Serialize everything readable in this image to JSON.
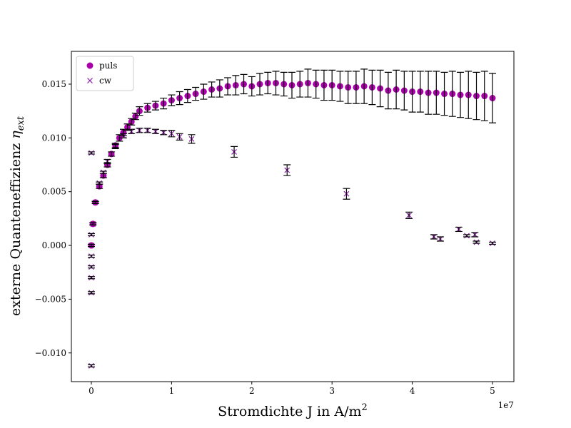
{
  "chart_data": {
    "type": "scatter",
    "xlabel": "Stromdichte J in A/m",
    "xlabel_sup": "2",
    "ylabel": "externe Quanteneffizienz ",
    "ylabel_symbol": "η",
    "ylabel_sub": "ext",
    "x_offset_label": "1e7",
    "xlim": [
      -0.249,
      5.267
    ],
    "ylim": [
      -0.01267,
      0.01805
    ],
    "xticks": [
      0,
      1,
      2,
      3,
      4,
      5
    ],
    "yticks": [
      {
        "value": -0.01,
        "label": "−0.010"
      },
      {
        "value": -0.005,
        "label": "−0.005"
      },
      {
        "value": 0.0,
        "label": "0.000"
      },
      {
        "value": 0.005,
        "label": "0.005"
      },
      {
        "value": 0.01,
        "label": "0.010"
      },
      {
        "value": 0.015,
        "label": "0.015"
      }
    ],
    "legend": "upper left",
    "series": [
      {
        "name": "puls",
        "color": "#aa00aa",
        "marker": "o",
        "x": [
          0,
          0.02,
          0.05,
          0.1,
          0.15,
          0.2,
          0.25,
          0.3,
          0.35,
          0.4,
          0.45,
          0.5,
          0.55,
          0.6,
          0.7,
          0.8,
          0.9,
          1.0,
          1.1,
          1.2,
          1.3,
          1.4,
          1.5,
          1.6,
          1.7,
          1.8,
          1.9,
          2.0,
          2.1,
          2.2,
          2.3,
          2.4,
          2.5,
          2.6,
          2.7,
          2.8,
          2.9,
          3.0,
          3.1,
          3.2,
          3.3,
          3.4,
          3.5,
          3.6,
          3.7,
          3.8,
          3.9,
          4.0,
          4.1,
          4.2,
          4.3,
          4.4,
          4.5,
          4.6,
          4.7,
          4.8,
          4.9,
          5.0
        ],
        "values": [
          0.0,
          0.002,
          0.004,
          0.0055,
          0.0065,
          0.0075,
          0.0085,
          0.0093,
          0.01,
          0.0105,
          0.011,
          0.0115,
          0.012,
          0.0125,
          0.0128,
          0.013,
          0.0132,
          0.0135,
          0.0137,
          0.0139,
          0.0141,
          0.0143,
          0.0145,
          0.0146,
          0.0148,
          0.0149,
          0.015,
          0.0148,
          0.015,
          0.0151,
          0.0151,
          0.015,
          0.0149,
          0.015,
          0.0151,
          0.015,
          0.0149,
          0.0149,
          0.0148,
          0.0147,
          0.0147,
          0.0148,
          0.0147,
          0.0146,
          0.0144,
          0.0145,
          0.0144,
          0.0143,
          0.0143,
          0.0142,
          0.0142,
          0.0141,
          0.0141,
          0.014,
          0.014,
          0.0139,
          0.0139,
          0.0137
        ],
        "errors": [
          0.0001,
          0.0001,
          0.0001,
          0.0002,
          0.0002,
          0.0002,
          0.0002,
          0.0002,
          0.0003,
          0.0003,
          0.0003,
          0.0003,
          0.0003,
          0.0004,
          0.0004,
          0.0004,
          0.0005,
          0.0005,
          0.0006,
          0.0006,
          0.0006,
          0.0007,
          0.0007,
          0.0008,
          0.0008,
          0.0009,
          0.0009,
          0.0009,
          0.001,
          0.001,
          0.0011,
          0.0011,
          0.0012,
          0.0012,
          0.0013,
          0.0013,
          0.0014,
          0.0014,
          0.0014,
          0.0015,
          0.0015,
          0.0016,
          0.0016,
          0.0017,
          0.0017,
          0.0018,
          0.0018,
          0.0019,
          0.0019,
          0.002,
          0.002,
          0.002,
          0.0021,
          0.0021,
          0.0022,
          0.0022,
          0.0023,
          0.0023
        ]
      },
      {
        "name": "cw",
        "color": "#8b1fa8",
        "marker": "x",
        "x": [
          0,
          0,
          0,
          0,
          0,
          0,
          0,
          0,
          0.02,
          0.05,
          0.1,
          0.15,
          0.2,
          0.3,
          0.4,
          0.5,
          0.6,
          0.7,
          0.8,
          0.9,
          1.0,
          1.1,
          1.25,
          1.78,
          2.44,
          3.18,
          3.96,
          4.27,
          4.35,
          4.58,
          4.68,
          4.78,
          4.8,
          5.0
        ],
        "values": [
          -0.0112,
          -0.0044,
          -0.003,
          -0.002,
          -0.001,
          0.0,
          0.001,
          0.0086,
          0.002,
          0.004,
          0.0058,
          0.0068,
          0.0078,
          0.0092,
          0.0102,
          0.0106,
          0.0107,
          0.0107,
          0.0106,
          0.0105,
          0.0104,
          0.0101,
          0.0099,
          0.0087,
          0.007,
          0.0048,
          0.0028,
          0.0008,
          0.0006,
          0.0015,
          0.0009,
          0.001,
          0.0003,
          0.0002
        ],
        "errors": [
          0.0001,
          0.0001,
          0.0001,
          0.0001,
          0.0001,
          0.0001,
          0.0001,
          0.0001,
          0.0001,
          0.0001,
          0.0001,
          0.0001,
          0.0002,
          0.0002,
          0.0002,
          0.0002,
          0.0002,
          0.0002,
          0.0002,
          0.0002,
          0.0003,
          0.0003,
          0.0004,
          0.0005,
          0.0005,
          0.0005,
          0.0003,
          0.0002,
          0.0002,
          0.0002,
          0.0001,
          0.0002,
          0.0001,
          0.0001
        ]
      }
    ]
  }
}
